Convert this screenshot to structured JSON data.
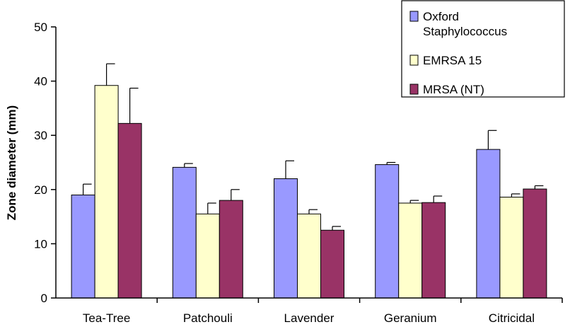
{
  "chart_data": {
    "type": "bar",
    "title": "",
    "xlabel": "",
    "ylabel": "Zone diameter (mm)",
    "ylim": [
      0,
      50
    ],
    "yticks": [
      "0",
      "10",
      "20",
      "30",
      "40",
      "50"
    ],
    "categories": [
      "Tea-Tree",
      "Patchouli",
      "Lavender",
      "Geranium",
      "Citricidal"
    ],
    "series": [
      {
        "name": "Oxford Staphylococcus",
        "legend_lines": [
          "Oxford",
          "Staphylococcus"
        ],
        "color": "#9999ff",
        "values": [
          19.0,
          24.1,
          22.0,
          24.6,
          27.4
        ],
        "errors": [
          2.0,
          0.7,
          3.3,
          0.4,
          3.5
        ]
      },
      {
        "name": "EMRSA 15",
        "legend_lines": [
          "EMRSA 15"
        ],
        "color": "#ffffcc",
        "values": [
          39.2,
          15.5,
          15.5,
          17.5,
          18.6
        ],
        "errors": [
          4.0,
          2.0,
          0.8,
          0.5,
          0.6
        ]
      },
      {
        "name": "MRSA (NT)",
        "legend_lines": [
          "MRSA (NT)"
        ],
        "color": "#993366",
        "values": [
          32.2,
          18.0,
          12.5,
          17.6,
          20.1
        ],
        "errors": [
          6.5,
          2.0,
          0.7,
          1.2,
          0.6
        ]
      }
    ],
    "legend_position": "top-right",
    "grid": false
  }
}
